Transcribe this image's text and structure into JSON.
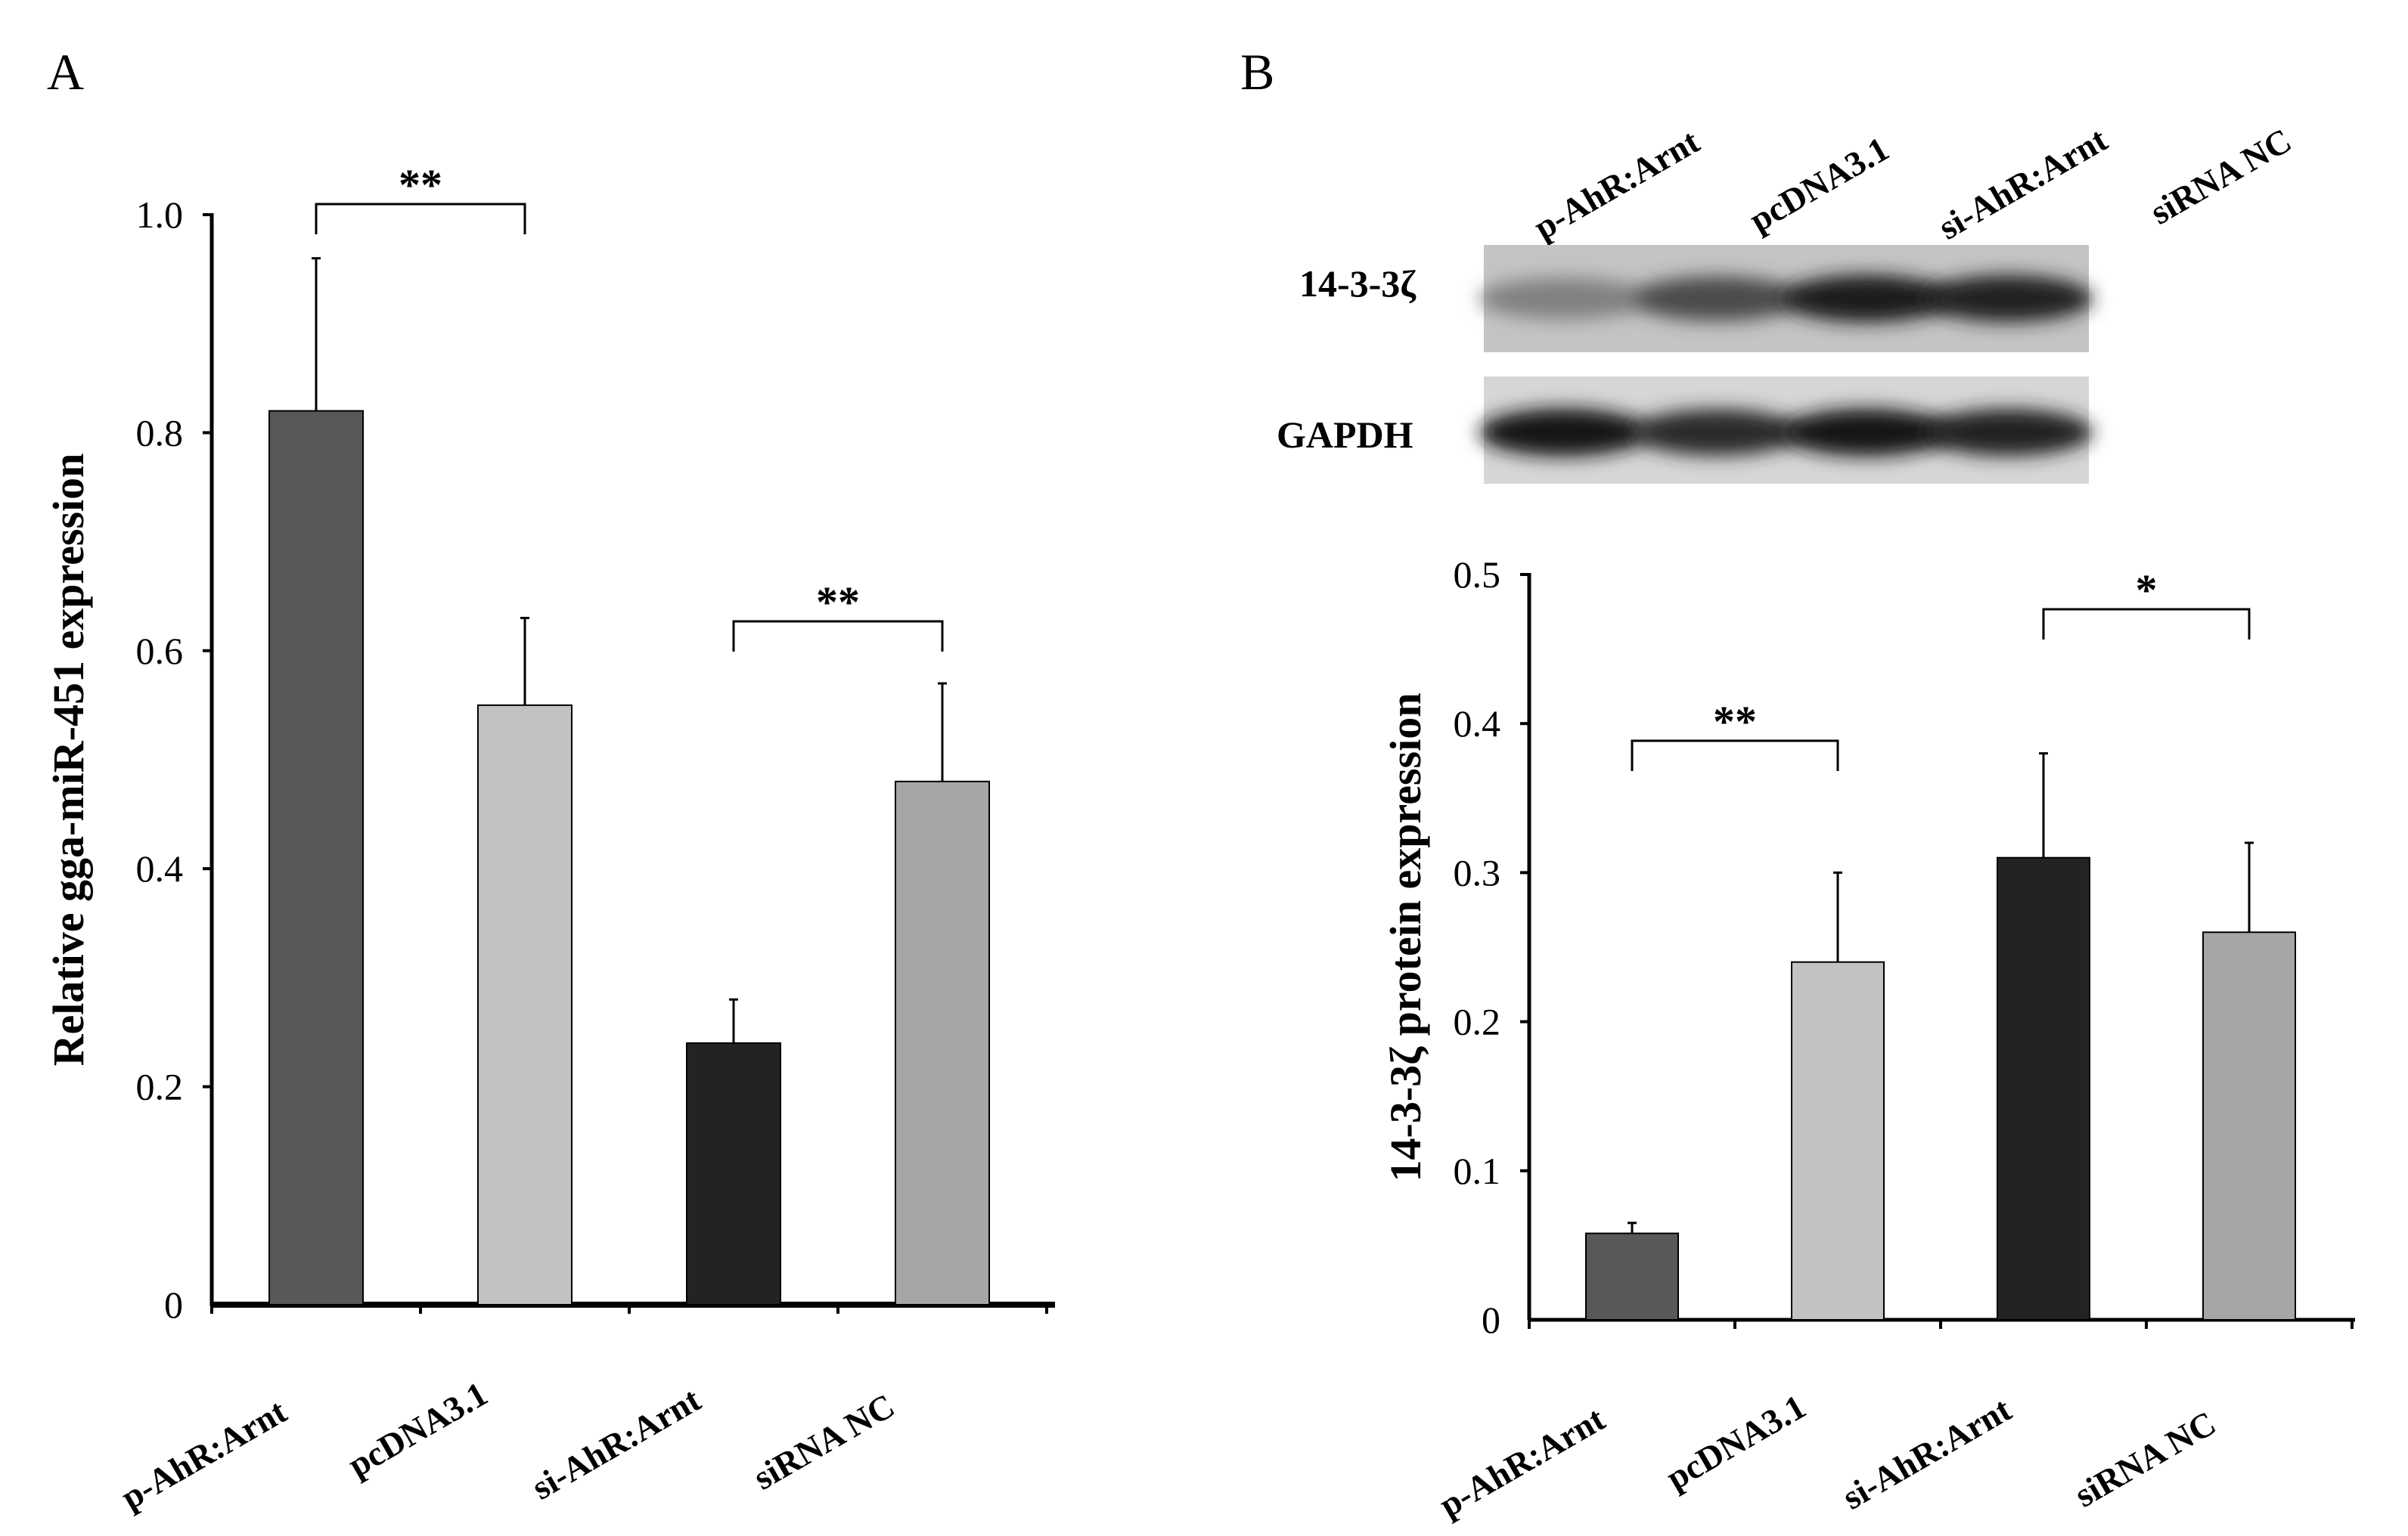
{
  "panels": [
    {
      "id": "A",
      "label": "A"
    },
    {
      "id": "B",
      "label": "B"
    }
  ],
  "colors": {
    "p_AhR_Arnt": "#585858",
    "pcDNA3_1": "#c2c2c2",
    "si_AhR_Arnt": "#232323",
    "siRNA_NC": "#a6a6a6",
    "axis": "#000000"
  },
  "blot": {
    "lane_labels": [
      "p-AhR:Arnt",
      "pcDNA3.1",
      "si-AhR:Arnt",
      "siRNA NC"
    ],
    "rows": [
      {
        "label": "14-3-3ζ",
        "band_intensity": [
          0.3,
          0.62,
          0.9,
          0.85
        ]
      },
      {
        "label": "GAPDH",
        "band_intensity": [
          0.95,
          0.8,
          0.92,
          0.85
        ]
      }
    ]
  },
  "chart_data": [
    {
      "type": "bar",
      "panel": "A",
      "categories": [
        "p-AhR:Arnt",
        "pcDNA3.1",
        "si-AhR:Arnt",
        "siRNA NC"
      ],
      "values": [
        0.82,
        0.55,
        0.24,
        0.48
      ],
      "errors": [
        0.14,
        0.08,
        0.04,
        0.09
      ],
      "ylabel": "Relative  gga-miR-451 expression",
      "ylim": [
        0,
        1.0
      ],
      "yticks": [
        "0",
        "0.2",
        "0.4",
        "0.6",
        "0.8",
        "1.0"
      ],
      "significance": [
        {
          "pair": [
            0,
            1
          ],
          "label": "**"
        },
        {
          "pair": [
            2,
            3
          ],
          "label": "**"
        }
      ]
    },
    {
      "type": "bar",
      "panel": "B",
      "categories": [
        "p-AhR:Arnt",
        "pcDNA3.1",
        "si-AhR:Arnt",
        "siRNA NC"
      ],
      "values": [
        0.058,
        0.24,
        0.31,
        0.26
      ],
      "errors": [
        0.007,
        0.06,
        0.07,
        0.06
      ],
      "ylabel": "14-3-3ζ protein expression",
      "ylim": [
        0,
        0.5
      ],
      "yticks": [
        "0",
        "0.1",
        "0.2",
        "0.3",
        "0.4",
        "0.5"
      ],
      "significance": [
        {
          "pair": [
            0,
            1
          ],
          "label": "**"
        },
        {
          "pair": [
            2,
            3
          ],
          "label": "*"
        }
      ]
    }
  ]
}
